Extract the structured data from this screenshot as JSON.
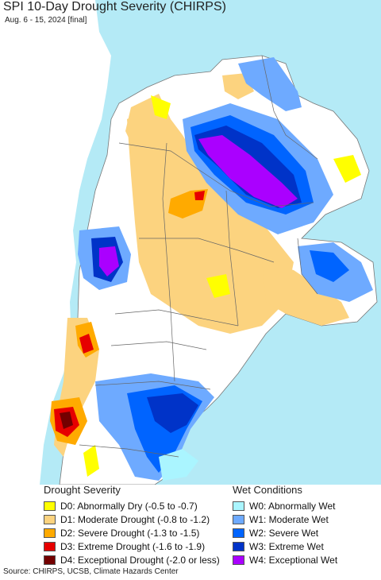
{
  "title": "SPI 10-Day Drought Severity (CHIRPS)",
  "subtitle": "Aug. 6 - 15, 2024 [final]",
  "colors": {
    "ocean": "#b4eaf6",
    "land_neutral": "#ffffff",
    "border": "#666666"
  },
  "legend": {
    "drought": {
      "heading": "Drought Severity",
      "items": [
        {
          "label": "D0: Abnormally Dry (-0.5 to -0.7)",
          "color": "#ffff00"
        },
        {
          "label": "D1: Moderate Drought (-0.8 to -1.2)",
          "color": "#fcd37f"
        },
        {
          "label": "D2: Severe Drought (-1.3 to -1.5)",
          "color": "#ffaa00"
        },
        {
          "label": "D3: Extreme Drought (-1.6 to -1.9)",
          "color": "#e60000"
        },
        {
          "label": "D4: Exceptional Drought (-2.0 or less)",
          "color": "#730000"
        }
      ]
    },
    "wet": {
      "heading": "Wet Conditions",
      "items": [
        {
          "label": "W0: Abnormally Wet",
          "color": "#aaf5ff"
        },
        {
          "label": "W1: Moderate Wet",
          "color": "#6eaaff"
        },
        {
          "label": "W2: Severe Wet",
          "color": "#0064ff"
        },
        {
          "label": "W3: Extreme Wet",
          "color": "#0033c8"
        },
        {
          "label": "W4: Exceptional Wet",
          "color": "#aa00ff"
        }
      ]
    }
  },
  "source": "Source: CHIRPS, UCSB, Climate Hazards Center"
}
